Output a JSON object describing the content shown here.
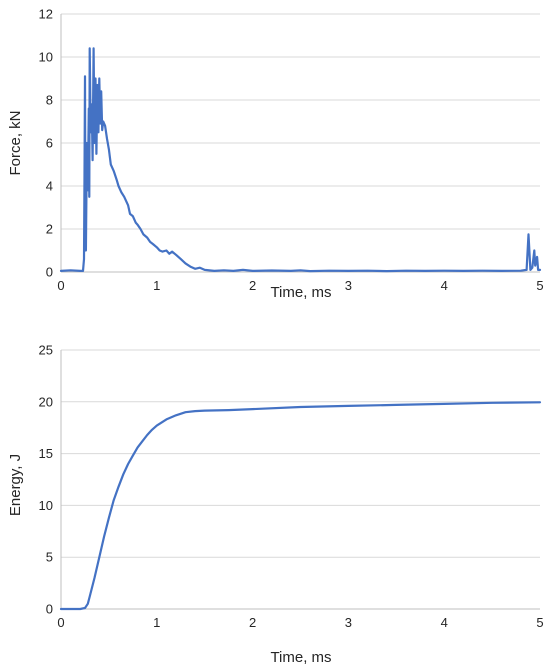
{
  "chart_data": [
    {
      "type": "line",
      "title": "",
      "xlabel": "Time, ms",
      "ylabel": "Force, kN",
      "xlim": [
        0,
        5
      ],
      "ylim": [
        0,
        12
      ],
      "xticks": [
        0,
        1,
        2,
        3,
        4,
        5
      ],
      "yticks": [
        0,
        2,
        4,
        6,
        8,
        10,
        12
      ],
      "grid": "horizontal",
      "legend": "none",
      "color": "#4472c4",
      "series": [
        {
          "name": "",
          "points": [
            [
              0.0,
              0.05
            ],
            [
              0.1,
              0.08
            ],
            [
              0.2,
              0.05
            ],
            [
              0.23,
              0.05
            ],
            [
              0.24,
              0.6
            ],
            [
              0.245,
              4.5
            ],
            [
              0.25,
              9.1
            ],
            [
              0.255,
              2.0
            ],
            [
              0.26,
              1.0
            ],
            [
              0.27,
              6.0
            ],
            [
              0.28,
              3.8
            ],
            [
              0.29,
              7.6
            ],
            [
              0.295,
              3.5
            ],
            [
              0.3,
              10.4
            ],
            [
              0.31,
              6.5
            ],
            [
              0.32,
              7.8
            ],
            [
              0.33,
              5.2
            ],
            [
              0.34,
              10.4
            ],
            [
              0.35,
              6.0
            ],
            [
              0.36,
              9.0
            ],
            [
              0.37,
              5.5
            ],
            [
              0.38,
              8.7
            ],
            [
              0.39,
              6.5
            ],
            [
              0.4,
              9.0
            ],
            [
              0.41,
              6.9
            ],
            [
              0.42,
              8.4
            ],
            [
              0.43,
              6.6
            ],
            [
              0.44,
              7.0
            ],
            [
              0.46,
              6.8
            ],
            [
              0.48,
              6.2
            ],
            [
              0.5,
              5.7
            ],
            [
              0.52,
              5.0
            ],
            [
              0.55,
              4.7
            ],
            [
              0.58,
              4.3
            ],
            [
              0.6,
              4.0
            ],
            [
              0.63,
              3.7
            ],
            [
              0.66,
              3.5
            ],
            [
              0.7,
              3.1
            ],
            [
              0.72,
              2.7
            ],
            [
              0.75,
              2.6
            ],
            [
              0.78,
              2.3
            ],
            [
              0.8,
              2.2
            ],
            [
              0.83,
              2.0
            ],
            [
              0.86,
              1.75
            ],
            [
              0.9,
              1.6
            ],
            [
              0.93,
              1.4
            ],
            [
              0.96,
              1.3
            ],
            [
              1.0,
              1.15
            ],
            [
              1.03,
              1.0
            ],
            [
              1.06,
              0.95
            ],
            [
              1.1,
              1.0
            ],
            [
              1.13,
              0.85
            ],
            [
              1.16,
              0.95
            ],
            [
              1.2,
              0.8
            ],
            [
              1.25,
              0.6
            ],
            [
              1.3,
              0.4
            ],
            [
              1.35,
              0.25
            ],
            [
              1.4,
              0.15
            ],
            [
              1.45,
              0.2
            ],
            [
              1.5,
              0.1
            ],
            [
              1.6,
              0.05
            ],
            [
              1.7,
              0.08
            ],
            [
              1.8,
              0.05
            ],
            [
              1.9,
              0.1
            ],
            [
              2.0,
              0.05
            ],
            [
              2.2,
              0.07
            ],
            [
              2.4,
              0.05
            ],
            [
              2.5,
              0.08
            ],
            [
              2.6,
              0.04
            ],
            [
              2.8,
              0.06
            ],
            [
              3.0,
              0.05
            ],
            [
              3.2,
              0.06
            ],
            [
              3.4,
              0.04
            ],
            [
              3.6,
              0.06
            ],
            [
              3.8,
              0.05
            ],
            [
              4.0,
              0.06
            ],
            [
              4.2,
              0.05
            ],
            [
              4.4,
              0.06
            ],
            [
              4.6,
              0.05
            ],
            [
              4.8,
              0.06
            ],
            [
              4.86,
              0.1
            ],
            [
              4.88,
              1.75
            ],
            [
              4.9,
              0.1
            ],
            [
              4.92,
              0.2
            ],
            [
              4.94,
              1.0
            ],
            [
              4.95,
              0.3
            ],
            [
              4.97,
              0.7
            ],
            [
              4.98,
              0.1
            ],
            [
              5.0,
              0.1
            ]
          ]
        }
      ]
    },
    {
      "type": "line",
      "title": "",
      "xlabel": "Time, ms",
      "ylabel": "Energy, J",
      "xlim": [
        0,
        5
      ],
      "ylim": [
        0,
        25
      ],
      "xticks": [
        0,
        1,
        2,
        3,
        4,
        5
      ],
      "yticks": [
        0,
        5,
        10,
        15,
        20,
        25
      ],
      "grid": "horizontal",
      "legend": "none",
      "color": "#4472c4",
      "series": [
        {
          "name": "",
          "points": [
            [
              0.0,
              0.0
            ],
            [
              0.2,
              0.0
            ],
            [
              0.25,
              0.1
            ],
            [
              0.28,
              0.5
            ],
            [
              0.3,
              1.2
            ],
            [
              0.35,
              3.0
            ],
            [
              0.4,
              5.0
            ],
            [
              0.45,
              7.0
            ],
            [
              0.5,
              8.8
            ],
            [
              0.55,
              10.5
            ],
            [
              0.6,
              11.8
            ],
            [
              0.65,
              13.0
            ],
            [
              0.7,
              14.0
            ],
            [
              0.75,
              14.8
            ],
            [
              0.8,
              15.6
            ],
            [
              0.85,
              16.2
            ],
            [
              0.9,
              16.8
            ],
            [
              0.95,
              17.3
            ],
            [
              1.0,
              17.7
            ],
            [
              1.1,
              18.3
            ],
            [
              1.2,
              18.7
            ],
            [
              1.3,
              19.0
            ],
            [
              1.4,
              19.1
            ],
            [
              1.5,
              19.15
            ],
            [
              1.75,
              19.2
            ],
            [
              2.0,
              19.3
            ],
            [
              2.5,
              19.5
            ],
            [
              3.0,
              19.6
            ],
            [
              3.5,
              19.7
            ],
            [
              4.0,
              19.8
            ],
            [
              4.5,
              19.9
            ],
            [
              5.0,
              19.95
            ]
          ]
        }
      ]
    }
  ]
}
